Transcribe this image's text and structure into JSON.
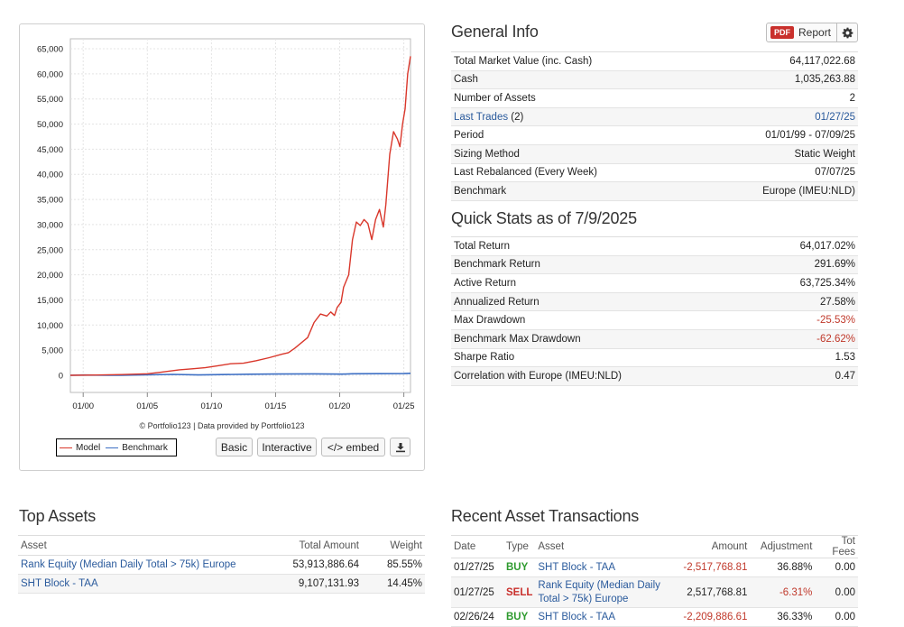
{
  "chart": {
    "credit": "© Portfolio123 | Data provided by Portfolio123",
    "legend": {
      "model": "Model",
      "benchmark": "Benchmark"
    },
    "buttons": {
      "basic": "Basic",
      "interactive": "Interactive",
      "embed": "</> embed",
      "download_icon": "download-icon"
    },
    "colors": {
      "model": "#d9372b",
      "benchmark": "#3d6fc4"
    }
  },
  "chart_data": {
    "type": "line",
    "x_tick_labels": [
      "01/00",
      "01/05",
      "01/10",
      "01/15",
      "01/20",
      "01/25"
    ],
    "y_tick_labels": [
      "0",
      "5,000",
      "10,000",
      "15,000",
      "20,000",
      "25,000",
      "30,000",
      "35,000",
      "40,000",
      "45,000",
      "50,000",
      "55,000",
      "60,000",
      "65,000"
    ],
    "ylim": [
      0,
      65000
    ],
    "xlim": [
      1999.0,
      2025.52
    ],
    "grid": true,
    "legend_position": "bottom-left",
    "series": [
      {
        "name": "Model",
        "x": [
          1999.0,
          2001.0,
          2003.0,
          2005.0,
          2006.0,
          2007.5,
          2008.5,
          2009.5,
          2010.5,
          2011.5,
          2012.5,
          2013.5,
          2014.5,
          2015.5,
          2016.0,
          2016.5,
          2017.5,
          2018.0,
          2018.5,
          2019.0,
          2019.3,
          2019.6,
          2019.8,
          2020.1,
          2020.3,
          2020.7,
          2021.0,
          2021.3,
          2021.6,
          2021.9,
          2022.2,
          2022.5,
          2022.8,
          2023.1,
          2023.4,
          2023.6,
          2023.9,
          2024.2,
          2024.5,
          2024.7,
          2024.9,
          2025.1,
          2025.3,
          2025.52
        ],
        "y": [
          0,
          50,
          150,
          300,
          600,
          1100,
          1300,
          1500,
          1900,
          2300,
          2400,
          2900,
          3500,
          4200,
          4500,
          5400,
          7500,
          10500,
          12200,
          11800,
          12600,
          11900,
          13500,
          14500,
          17500,
          20000,
          27000,
          30500,
          29800,
          31000,
          30200,
          27000,
          31000,
          33000,
          29500,
          34000,
          44000,
          48500,
          47000,
          45500,
          50000,
          53000,
          60000,
          63500
        ]
      },
      {
        "name": "Benchmark",
        "x": [
          1999.0,
          2000.0,
          2002.0,
          2003.0,
          2007.0,
          2009.0,
          2013.0,
          2015.0,
          2018.0,
          2020.2,
          2021.0,
          2023.0,
          2025.0,
          2025.52
        ],
        "y": [
          0,
          50,
          20,
          10,
          180,
          80,
          220,
          260,
          280,
          230,
          300,
          320,
          340,
          400
        ]
      }
    ]
  },
  "general_info": {
    "title": "General Info",
    "report_button": {
      "badge": "PDF",
      "label": "Report",
      "gear_icon": "gear-icon"
    },
    "rows": [
      {
        "label": "Total Market Value (inc. Cash)",
        "value": "64,117,022.68"
      },
      {
        "label": "Cash",
        "value": "1,035,263.88"
      },
      {
        "label": "Number of Assets",
        "value": "2"
      },
      {
        "label": "Last Trades",
        "label_suffix": " (2)",
        "value": "01/27/25"
      },
      {
        "label": "Period",
        "value": "01/01/99 - 07/09/25"
      },
      {
        "label": "Sizing Method",
        "value": "Static Weight"
      },
      {
        "label": "Last Rebalanced (Every Week)",
        "value": "07/07/25"
      },
      {
        "label": "Benchmark",
        "value": "Europe (IMEU:NLD)"
      }
    ]
  },
  "quick_stats": {
    "title": "Quick Stats as of 7/9/2025",
    "rows": [
      {
        "label": "Total Return",
        "value": "64,017.02%"
      },
      {
        "label": "Benchmark Return",
        "value": "291.69%"
      },
      {
        "label": "Active Return",
        "value": "63,725.34%"
      },
      {
        "label": "Annualized Return",
        "value": "27.58%"
      },
      {
        "label": "Max Drawdown",
        "value": "-25.53%"
      },
      {
        "label": "Benchmark Max Drawdown",
        "value": "-62.62%"
      },
      {
        "label": "Sharpe Ratio",
        "value": "1.53"
      },
      {
        "label": "Correlation with Europe (IMEU:NLD)",
        "value": "0.47"
      }
    ]
  },
  "top_assets": {
    "title": "Top Assets",
    "columns": [
      "Asset",
      "Total Amount",
      "Weight"
    ],
    "rows": [
      {
        "asset": "Rank Equity (Median Daily Total > 75k) Europe",
        "amount": "53,913,886.64",
        "weight": "85.55%"
      },
      {
        "asset": "SHT Block - TAA",
        "amount": "9,107,131.93",
        "weight": "14.45%"
      }
    ]
  },
  "recent_transactions": {
    "title": "Recent Asset Transactions",
    "columns": [
      "Date",
      "Type",
      "Asset",
      "Amount",
      "Adjustment",
      "Tot Fees"
    ],
    "rows": [
      {
        "date": "01/27/25",
        "type": "BUY",
        "asset": "SHT Block - TAA",
        "amount": "-2,517,768.81",
        "adjustment": "36.88%",
        "fees": "0.00"
      },
      {
        "date": "01/27/25",
        "type": "SELL",
        "asset": "Rank Equity (Median Daily Total > 75k) Europe",
        "amount": "2,517,768.81",
        "adjustment": "-6.31%",
        "fees": "0.00"
      },
      {
        "date": "02/26/24",
        "type": "BUY",
        "asset": "SHT Block - TAA",
        "amount": "-2,209,886.61",
        "adjustment": "36.33%",
        "fees": "0.00"
      }
    ]
  }
}
